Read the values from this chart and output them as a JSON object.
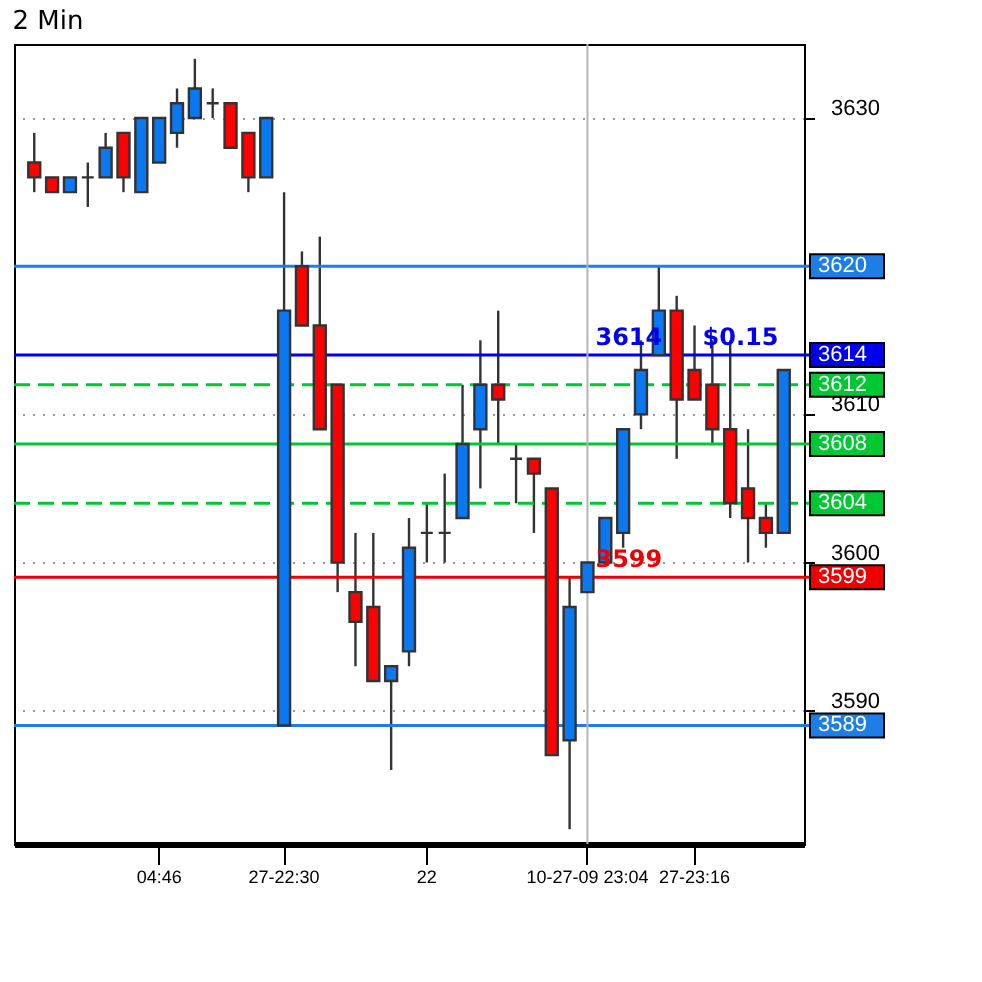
{
  "chart_data": {
    "type": "candlestick",
    "title": "2 Min",
    "categories": [
      null,
      null,
      null,
      null,
      null,
      null,
      null,
      "04:46",
      null,
      null,
      null,
      null,
      null,
      null,
      "27-22:30",
      null,
      null,
      null,
      null,
      null,
      null,
      null,
      "22",
      null,
      null,
      null,
      null,
      null,
      null,
      null,
      null,
      "10-27-09 23:04",
      null,
      null,
      null,
      null,
      null,
      "27-23:16",
      null,
      null,
      null,
      null,
      null
    ],
    "ohlc": [
      [
        3627,
        3629,
        3625,
        3626
      ],
      [
        3626,
        3626,
        3625,
        3625
      ],
      [
        3625,
        3626,
        3625,
        3626
      ],
      [
        3626,
        3627,
        3624,
        3626
      ],
      [
        3626,
        3629,
        3626,
        3628
      ],
      [
        3629,
        3629,
        3625,
        3626
      ],
      [
        3625,
        3630,
        3625,
        3630
      ],
      [
        3627,
        3630,
        3627,
        3630
      ],
      [
        3629,
        3632,
        3628,
        3631
      ],
      [
        3630,
        3634,
        3630,
        3632
      ],
      [
        3631,
        3632,
        3630,
        3631
      ],
      [
        3631,
        3631,
        3628,
        3628
      ],
      [
        3629,
        3629,
        3625,
        3626
      ],
      [
        3626,
        3630,
        3626,
        3630
      ],
      [
        3589,
        3625,
        3589,
        3617
      ],
      [
        3620,
        3621,
        3616,
        3616
      ],
      [
        3616,
        3622,
        3609,
        3609
      ],
      [
        3612,
        3612,
        3598,
        3600
      ],
      [
        3598,
        3602,
        3593,
        3596
      ],
      [
        3597,
        3602,
        3592,
        3592
      ],
      [
        3592,
        3593,
        3586,
        3593
      ],
      [
        3594,
        3603,
        3593,
        3601
      ],
      [
        3602,
        3604,
        3600,
        3602
      ],
      [
        3602,
        3606,
        3600,
        3602
      ],
      [
        3603,
        3612,
        3603,
        3608
      ],
      [
        3609,
        3615,
        3605,
        3612
      ],
      [
        3612,
        3617,
        3608,
        3611
      ],
      [
        3607,
        3608,
        3604,
        3607
      ],
      [
        3607,
        3607,
        3602,
        3606
      ],
      [
        3605,
        3605,
        3587,
        3587
      ],
      [
        3588,
        3599,
        3582,
        3597
      ],
      [
        3598,
        3600,
        3598,
        3600
      ],
      [
        3600,
        3603,
        3600,
        3603
      ],
      [
        3602,
        3609,
        3601,
        3609
      ],
      [
        3610,
        3615,
        3609,
        3613
      ],
      [
        3614,
        3620,
        3614,
        3617
      ],
      [
        3617,
        3618,
        3607,
        3611
      ],
      [
        3613,
        3616,
        3611,
        3611
      ],
      [
        3612,
        3615,
        3608,
        3609
      ],
      [
        3609,
        3615,
        3603,
        3604
      ],
      [
        3605,
        3609,
        3600,
        3603
      ],
      [
        3603,
        3604,
        3601,
        3602
      ],
      [
        3602,
        3613,
        3602,
        3613
      ]
    ],
    "colors": [
      "#ff0000",
      "#ff0000",
      "#0a78f0",
      "#333333",
      "#0a78f0",
      "#ff0000",
      "#0a78f0",
      "#0a78f0",
      "#0a78f0",
      "#0a78f0",
      "#333333",
      "#ff0000",
      "#ff0000",
      "#0a78f0",
      "#0a78f0",
      "#ff0000",
      "#ff0000",
      "#ff0000",
      "#ff0000",
      "#ff0000",
      "#0a78f0",
      "#0a78f0",
      "#333333",
      "#333333",
      "#0a78f0",
      "#0a78f0",
      "#ff0000",
      "#333333",
      "#ff0000",
      "#ff0000",
      "#0a78f0",
      "#0a78f0",
      "#0a78f0",
      "#0a78f0",
      "#0a78f0",
      "#0a78f0",
      "#ff0000",
      "#ff0000",
      "#ff0000",
      "#ff0000",
      "#ff0000",
      "#ff0000",
      "#0a78f0"
    ],
    "ylim": [
      3581,
      3635
    ],
    "yticks": [
      3590,
      3600,
      3610,
      3630
    ],
    "grid": true,
    "ref_lines": [
      {
        "axis": "y",
        "value": 3620,
        "label": "3620",
        "color": "#1e7ee8",
        "line_style": "solid"
      },
      {
        "axis": "y",
        "value": 3614,
        "label": "3614",
        "color": "#0000ee",
        "line_style": "solid"
      },
      {
        "axis": "y",
        "value": 3612,
        "label": "3612",
        "color": "#00c832",
        "line_style": "dashed"
      },
      {
        "axis": "y",
        "value": 3608,
        "label": "3608",
        "color": "#00c832",
        "line_style": "solid"
      },
      {
        "axis": "y",
        "value": 3604,
        "label": "3604",
        "color": "#00c832",
        "line_style": "dashed"
      },
      {
        "axis": "y",
        "value": 3599,
        "label": "3599",
        "color": "#ee0000",
        "line_style": "solid"
      },
      {
        "axis": "y",
        "value": 3589,
        "label": "3589",
        "color": "#1e7ee8",
        "line_style": "solid"
      },
      {
        "axis": "x",
        "value": "10-27-09 23:04",
        "color": "#b4b4b4",
        "line_style": "solid"
      }
    ],
    "annotations": [
      {
        "text": "$0.15",
        "x": "27-23:16",
        "y": 3614
      },
      {
        "text": "3614",
        "x": "10-27-09 23:04",
        "y": 3614
      },
      {
        "text": "3599",
        "x": "10-27-09 23:04",
        "y": 3599
      }
    ]
  }
}
